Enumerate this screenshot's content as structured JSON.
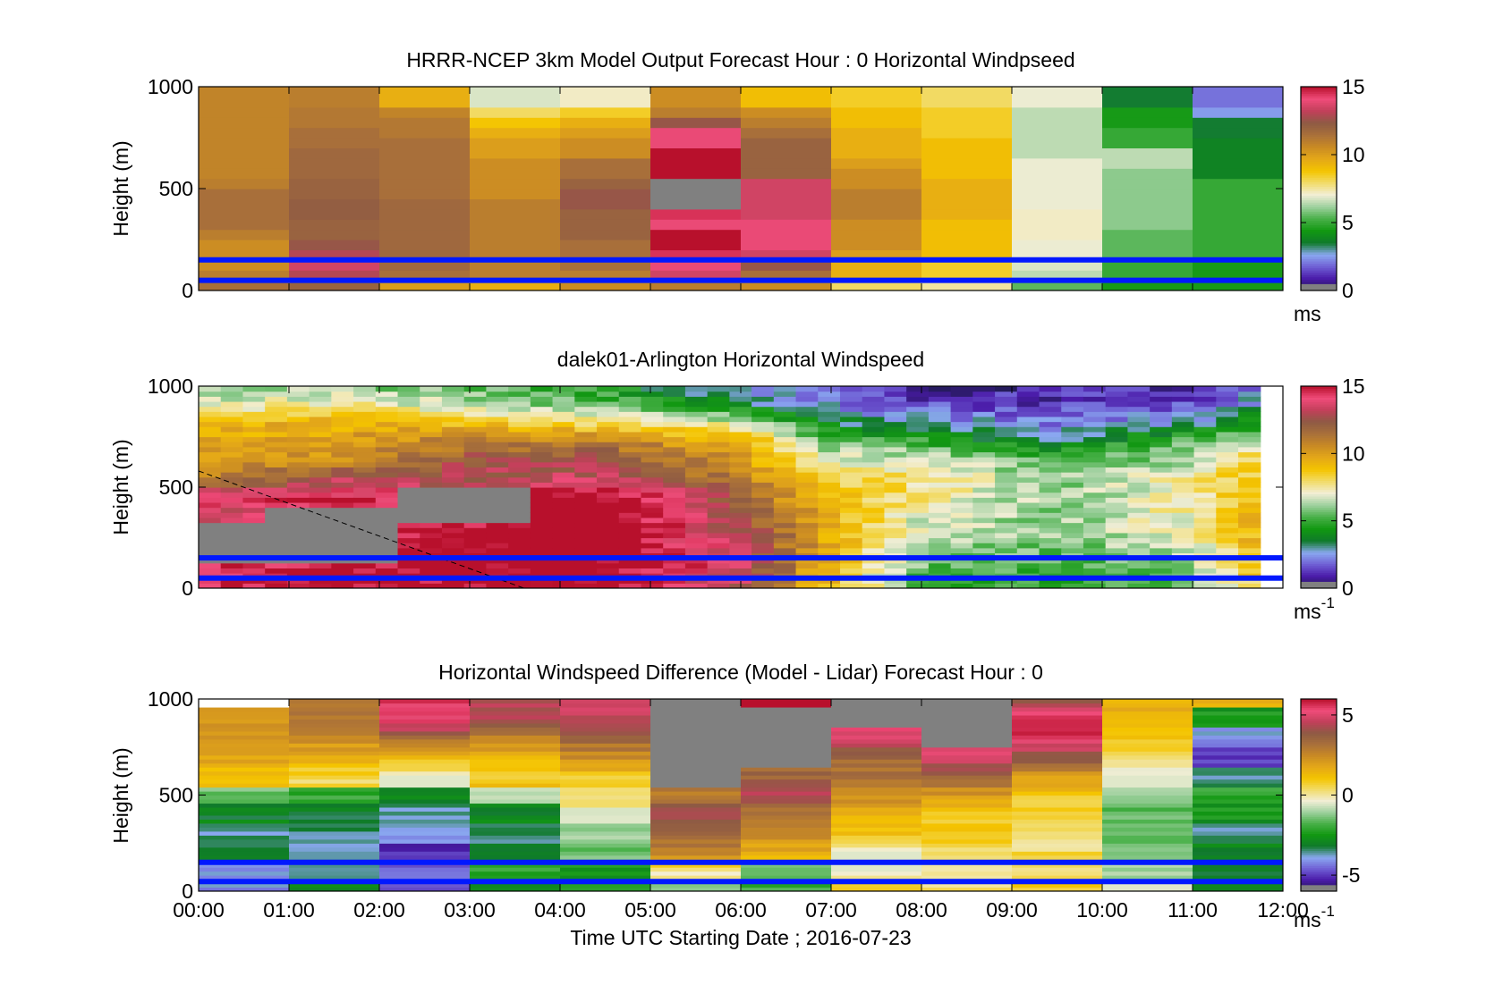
{
  "figure": {
    "xlabel": "Time UTC  Starting Date ; 2016-07-23",
    "x_ticks": [
      "00:00",
      "01:00",
      "02:00",
      "03:00",
      "04:00",
      "05:00",
      "06:00",
      "07:00",
      "08:00",
      "09:00",
      "10:00",
      "11:00",
      "12:00"
    ]
  },
  "palette": [
    "#1e1b4d",
    "#4a1aa8",
    "#6f5ed4",
    "#8aa8f0",
    "#0f7a2a",
    "#129812",
    "#48b048",
    "#9ed09e",
    "#f2eed6",
    "#f2dc6a",
    "#f4c400",
    "#e4a818",
    "#c98a24",
    "#a9703a",
    "#8e5a44",
    "#c2405a",
    "#f04c7a",
    "#b8102c"
  ],
  "chart_data": [
    {
      "type": "heatmap",
      "title": "HRRR-NCEP 3km Model Output   Forecast Hour : 0 Horizontal Windpseed",
      "ylabel": "Height (m)",
      "xlim": [
        0,
        12
      ],
      "ylim": [
        0,
        1000
      ],
      "y_ticks": [
        0,
        500,
        1000
      ],
      "colorbar": {
        "range": [
          0,
          15
        ],
        "ticks": [
          0,
          5,
          10,
          15
        ],
        "units": "ms",
        "units_sup": ""
      },
      "reference_lines_m": [
        50,
        150
      ],
      "line_color": "#0018ff",
      "x_bins": 12,
      "y_bins": 20,
      "values": [
        [
          11.5,
          11.0,
          10.5,
          10.5,
          10.5,
          11.0,
          11.5,
          11.5,
          11.5,
          11.5,
          11.0,
          10.8,
          10.8,
          10.8,
          10.8,
          10.8,
          10.8,
          10.8,
          10.8,
          10.8
        ],
        [
          12.0,
          13.0,
          13.5,
          13.0,
          12.5,
          12.0,
          12.0,
          12.2,
          12.2,
          12.0,
          12.0,
          11.8,
          11.8,
          11.8,
          11.5,
          11.5,
          11.2,
          11.2,
          11.0,
          11.0
        ],
        [
          10.0,
          11.5,
          11.8,
          11.8,
          11.8,
          11.8,
          11.8,
          11.8,
          11.8,
          11.5,
          11.5,
          11.5,
          11.5,
          11.5,
          11.5,
          11.2,
          11.2,
          10.8,
          9.5,
          9.5
        ],
        [
          9.5,
          11.0,
          11.0,
          11.0,
          11.0,
          11.0,
          11.0,
          11.0,
          11.0,
          10.5,
          10.5,
          10.5,
          10.5,
          10.0,
          10.0,
          9.5,
          8.8,
          8.0,
          6.8,
          6.8
        ],
        [
          10.5,
          11.0,
          11.5,
          11.5,
          11.5,
          12.0,
          12.0,
          12.0,
          12.5,
          12.5,
          12.0,
          11.5,
          11.5,
          10.5,
          10.5,
          10.0,
          9.5,
          8.5,
          7.2,
          7.2
        ],
        [
          11.0,
          13.5,
          14.0,
          14.5,
          15.0,
          15.0,
          14.0,
          14.5,
          -1,
          -1,
          -1,
          15.5,
          15.5,
          15.5,
          14.0,
          14.0,
          12.5,
          11.0,
          10.5,
          10.5
        ],
        [
          10.5,
          11.5,
          12.5,
          13.5,
          14.0,
          14.0,
          14.0,
          13.5,
          13.5,
          13.5,
          13.5,
          12.0,
          12.0,
          12.0,
          12.0,
          11.5,
          11.0,
          10.5,
          9.0,
          9.0
        ],
        [
          8.0,
          9.5,
          9.5,
          10.0,
          10.5,
          10.5,
          10.5,
          11.0,
          11.0,
          11.0,
          10.5,
          10.5,
          10.0,
          9.5,
          9.5,
          9.5,
          9.0,
          9.0,
          8.5,
          8.5
        ],
        [
          7.5,
          8.5,
          8.5,
          9.0,
          9.0,
          9.0,
          9.0,
          9.5,
          9.5,
          9.5,
          9.5,
          9.0,
          9.0,
          9.0,
          9.0,
          8.5,
          8.5,
          8.5,
          8.0,
          8.0
        ],
        [
          5.5,
          6.5,
          6.8,
          7.0,
          7.0,
          7.2,
          7.2,
          7.2,
          7.0,
          7.0,
          7.0,
          7.0,
          7.0,
          6.5,
          6.5,
          6.5,
          6.5,
          6.5,
          7.0,
          7.0
        ],
        [
          4.5,
          5.0,
          5.0,
          5.5,
          5.5,
          5.5,
          6.0,
          6.0,
          6.0,
          6.0,
          6.0,
          6.0,
          6.5,
          6.5,
          5.0,
          5.0,
          4.5,
          4.5,
          3.5,
          3.5
        ],
        [
          4.5,
          4.5,
          4.5,
          5.0,
          5.0,
          5.0,
          5.0,
          5.0,
          5.0,
          5.0,
          5.0,
          3.8,
          3.8,
          3.8,
          3.8,
          3.5,
          3.5,
          2.5,
          2.0,
          2.0
        ]
      ]
    },
    {
      "type": "heatmap",
      "title": "dalek01-Arlington  Horizontal Windspeed",
      "ylabel": "Height (m)",
      "xlim": [
        0,
        12
      ],
      "ylim": [
        0,
        1000
      ],
      "y_ticks": [
        0,
        500,
        1000
      ],
      "colorbar": {
        "range": [
          0,
          15
        ],
        "ticks": [
          0,
          5,
          10,
          15
        ],
        "units": "ms",
        "units_sup": "-1"
      },
      "reference_lines_m": [
        50,
        150
      ],
      "line_color": "#0018ff",
      "dashed_line": {
        "from": [
          0,
          580
        ],
        "to": [
          3.6,
          0
        ]
      },
      "x_bins": 48,
      "x_extent": [
        0,
        11.75
      ],
      "y_bins": 40,
      "profile_hours": [
        0,
        1.5,
        3,
        4.5,
        6,
        7,
        8,
        9.5,
        11,
        11.75
      ],
      "profile_values": [
        [
          15.0,
          14.5,
          -1,
          -1,
          13.5,
          14.0,
          10.5,
          10.0,
          9.5,
          9.0,
          7.0,
          6.0
        ],
        [
          15.0,
          15.0,
          -1,
          -1,
          -1,
          14.5,
          13.0,
          10.5,
          10.0,
          9.5,
          7.5,
          6.0
        ],
        [
          15.0,
          15.5,
          15.5,
          15.0,
          -1,
          -1,
          13.0,
          12.5,
          11.0,
          9.0,
          6.5,
          5.5
        ],
        [
          15.0,
          15.5,
          15.5,
          16.0,
          16.0,
          15.5,
          13.5,
          12.5,
          11.0,
          8.0,
          5.5,
          4.5
        ],
        [
          13.0,
          13.5,
          13.5,
          13.0,
          12.5,
          12.0,
          11.0,
          10.0,
          9.5,
          7.0,
          3.5,
          2.5
        ],
        [
          9.0,
          9.0,
          9.5,
          9.5,
          9.5,
          9.0,
          8.0,
          7.0,
          5.5,
          3.5,
          2.5,
          1.5
        ],
        [
          5.0,
          5.5,
          6.0,
          6.5,
          7.0,
          7.5,
          8.0,
          7.0,
          5.0,
          3.0,
          1.5,
          0.8
        ],
        [
          4.5,
          5.0,
          5.5,
          6.0,
          6.0,
          6.0,
          6.0,
          5.0,
          3.5,
          2.2,
          1.2,
          0.8
        ],
        [
          5.5,
          6.0,
          6.5,
          7.0,
          7.5,
          7.5,
          7.5,
          6.5,
          5.5,
          3.0,
          1.5,
          1.2
        ],
        [
          8.5,
          9.0,
          9.5,
          9.5,
          9.5,
          9.0,
          9.0,
          8.5,
          7.0,
          4.5,
          3.0,
          2.0
        ]
      ]
    },
    {
      "type": "heatmap",
      "title": "Horizontal Windspeed Difference (Model - Lidar) Forecast Hour : 0",
      "ylabel": "Height (m)",
      "xlim": [
        0,
        12
      ],
      "ylim": [
        0,
        1000
      ],
      "y_ticks": [
        0,
        500,
        1000
      ],
      "colorbar": {
        "range": [
          -6,
          6
        ],
        "ticks": [
          -5,
          0,
          5
        ],
        "tick_labels": [
          "-5",
          "0",
          "5"
        ],
        "units": "ms",
        "units_sup": "-1"
      },
      "reference_lines_m": [
        50,
        150
      ],
      "line_color": "#0018ff",
      "x_bins": 12,
      "y_bins": 48,
      "profile_heights": [
        0,
        100,
        200,
        300,
        400,
        500,
        600,
        700,
        800,
        900,
        1000
      ],
      "profile_values": [
        [
          -4.0,
          -4.0,
          -3.0,
          -3.5,
          -3.0,
          -1.5,
          1.0,
          2.0,
          2.5,
          2.0,
          -9
        ],
        [
          -3.0,
          -3.5,
          -3.5,
          -3.5,
          -3.0,
          -2.0,
          0.5,
          1.5,
          2.5,
          3.0,
          3.0
        ],
        [
          -4.5,
          -4.5,
          -5.0,
          -4.0,
          -3.5,
          -3.0,
          -0.5,
          1.5,
          3.5,
          5.5,
          5.5
        ],
        [
          -2.5,
          -2.0,
          -3.0,
          -3.5,
          -3.0,
          -1.0,
          1.0,
          1.5,
          2.5,
          4.5,
          4.5
        ],
        [
          -2.0,
          -2.5,
          -1.5,
          -1.0,
          -0.5,
          0.5,
          1.0,
          2.5,
          3.5,
          4.5,
          5.0
        ],
        [
          -1.0,
          0.0,
          2.5,
          3.5,
          4.5,
          3.0,
          -99,
          -99,
          -99,
          -99,
          -99
        ],
        [
          -2.0,
          -1.5,
          1.5,
          2.5,
          3.0,
          4.5,
          3.5,
          -99,
          -99,
          -99,
          6.0
        ],
        [
          1.0,
          -0.5,
          -0.5,
          1.0,
          1.5,
          2.5,
          3.0,
          3.5,
          5.0,
          -99,
          -99
        ],
        [
          0.5,
          0.0,
          0.5,
          1.0,
          1.0,
          2.0,
          3.5,
          5.0,
          -99,
          -99,
          -99
        ],
        [
          1.0,
          0.5,
          0.5,
          0.0,
          0.5,
          1.0,
          2.0,
          4.0,
          5.5,
          5.5,
          4.0
        ],
        [
          -0.5,
          -1.0,
          -1.5,
          -1.5,
          -1.5,
          -1.0,
          -0.5,
          0.5,
          1.0,
          1.5,
          1.5
        ],
        [
          -3.0,
          -3.0,
          -3.0,
          -3.5,
          -2.5,
          -2.0,
          -3.5,
          -5.0,
          -4.0,
          -2.5,
          1.5
        ]
      ]
    }
  ]
}
